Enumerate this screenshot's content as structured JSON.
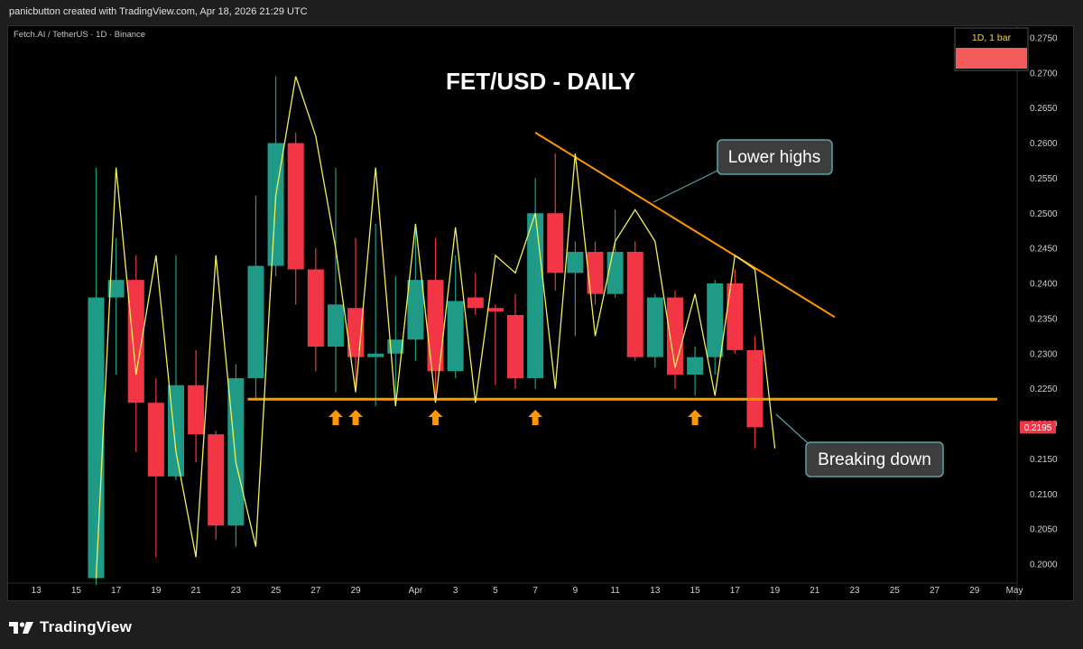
{
  "header": {
    "credit": "panicbutton created with TradingView.com, Apr 18, 2026 21:29 UTC"
  },
  "symbol_line": "Fetch.AI / TetherUS · 1D · Binance",
  "brand": {
    "name": "TradingView"
  },
  "colors": {
    "up": "#1e9a87",
    "down": "#f23645",
    "zigzag": "#f3ee5c",
    "trend": "#ff9800",
    "callout_bg": "#3d3d3d",
    "callout_border": "#5aa3a8"
  },
  "chart_data": {
    "type": "candlestick",
    "title": "FET/USD  -  DAILY",
    "x_labels": [
      "13",
      "15",
      "17",
      "19",
      "21",
      "23",
      "25",
      "27",
      "29",
      "Apr",
      "3",
      "5",
      "7",
      "9",
      "11",
      "13",
      "15",
      "17",
      "19",
      "21",
      "23",
      "25",
      "27",
      "29",
      "May"
    ],
    "y_ticks": [
      "0.2750",
      "0.2700",
      "0.2650",
      "0.2600",
      "0.2550",
      "0.2500",
      "0.2450",
      "0.2400",
      "0.2350",
      "0.2300",
      "0.2250",
      "0.2200",
      "0.2150",
      "0.2100",
      "0.2050",
      "0.2000"
    ],
    "ylim": [
      0.1975,
      0.2775
    ],
    "candles": [
      {
        "date": "Mar 16",
        "open": 0.198,
        "high": 0.2565,
        "low": 0.197,
        "close": 0.238
      },
      {
        "date": "Mar 17",
        "open": 0.238,
        "high": 0.2465,
        "low": 0.227,
        "close": 0.2405
      },
      {
        "date": "Mar 18",
        "open": 0.2405,
        "high": 0.244,
        "low": 0.216,
        "close": 0.223
      },
      {
        "date": "Mar 19",
        "open": 0.223,
        "high": 0.2265,
        "low": 0.201,
        "close": 0.2125
      },
      {
        "date": "Mar 20",
        "open": 0.2125,
        "high": 0.244,
        "low": 0.212,
        "close": 0.2255
      },
      {
        "date": "Mar 21",
        "open": 0.2255,
        "high": 0.2305,
        "low": 0.2145,
        "close": 0.2185
      },
      {
        "date": "Mar 22",
        "open": 0.2185,
        "high": 0.219,
        "low": 0.2035,
        "close": 0.2055
      },
      {
        "date": "Mar 23",
        "open": 0.2055,
        "high": 0.2285,
        "low": 0.2025,
        "close": 0.2265
      },
      {
        "date": "Mar 24",
        "open": 0.2265,
        "high": 0.2525,
        "low": 0.2235,
        "close": 0.2425
      },
      {
        "date": "Mar 25",
        "open": 0.2425,
        "high": 0.2695,
        "low": 0.241,
        "close": 0.26
      },
      {
        "date": "Mar 26",
        "open": 0.26,
        "high": 0.2615,
        "low": 0.237,
        "close": 0.242
      },
      {
        "date": "Mar 27",
        "open": 0.242,
        "high": 0.245,
        "low": 0.2275,
        "close": 0.231
      },
      {
        "date": "Mar 28",
        "open": 0.231,
        "high": 0.2565,
        "low": 0.2245,
        "close": 0.237
      },
      {
        "date": "Mar 29",
        "open": 0.2365,
        "high": 0.2465,
        "low": 0.225,
        "close": 0.2295
      },
      {
        "date": "Mar 30",
        "open": 0.2295,
        "high": 0.2485,
        "low": 0.2225,
        "close": 0.23
      },
      {
        "date": "Mar 31",
        "open": 0.23,
        "high": 0.241,
        "low": 0.223,
        "close": 0.232
      },
      {
        "date": "Apr 1",
        "open": 0.232,
        "high": 0.248,
        "low": 0.229,
        "close": 0.2405
      },
      {
        "date": "Apr 2",
        "open": 0.2405,
        "high": 0.2465,
        "low": 0.223,
        "close": 0.2275
      },
      {
        "date": "Apr 3",
        "open": 0.2275,
        "high": 0.244,
        "low": 0.2265,
        "close": 0.2375
      },
      {
        "date": "Apr 4",
        "open": 0.238,
        "high": 0.2415,
        "low": 0.2355,
        "close": 0.2365
      },
      {
        "date": "Apr 5",
        "open": 0.2365,
        "high": 0.237,
        "low": 0.2255,
        "close": 0.236
      },
      {
        "date": "Apr 6",
        "open": 0.2355,
        "high": 0.2385,
        "low": 0.225,
        "close": 0.2265
      },
      {
        "date": "Apr 7",
        "open": 0.2265,
        "high": 0.255,
        "low": 0.225,
        "close": 0.25
      },
      {
        "date": "Apr 8",
        "open": 0.25,
        "high": 0.2585,
        "low": 0.239,
        "close": 0.2415
      },
      {
        "date": "Apr 9",
        "open": 0.2415,
        "high": 0.246,
        "low": 0.2325,
        "close": 0.2445
      },
      {
        "date": "Apr 10",
        "open": 0.2445,
        "high": 0.246,
        "low": 0.237,
        "close": 0.2385
      },
      {
        "date": "Apr 11",
        "open": 0.2385,
        "high": 0.2505,
        "low": 0.238,
        "close": 0.2445
      },
      {
        "date": "Apr 12",
        "open": 0.2445,
        "high": 0.246,
        "low": 0.229,
        "close": 0.2295
      },
      {
        "date": "Apr 13",
        "open": 0.2295,
        "high": 0.2385,
        "low": 0.228,
        "close": 0.238
      },
      {
        "date": "Apr 14",
        "open": 0.238,
        "high": 0.239,
        "low": 0.225,
        "close": 0.227
      },
      {
        "date": "Apr 15",
        "open": 0.227,
        "high": 0.231,
        "low": 0.224,
        "close": 0.2295
      },
      {
        "date": "Apr 16",
        "open": 0.2295,
        "high": 0.2405,
        "low": 0.227,
        "close": 0.24
      },
      {
        "date": "Apr 17",
        "open": 0.24,
        "high": 0.242,
        "low": 0.23,
        "close": 0.2305
      },
      {
        "date": "Apr 18",
        "open": 0.2305,
        "high": 0.2325,
        "low": 0.2165,
        "close": 0.2195
      }
    ],
    "zigzag_values": [
      0.198,
      0.2565,
      0.227,
      0.244,
      0.216,
      0.201,
      0.244,
      0.2145,
      0.2025,
      0.2525,
      0.2695,
      0.261,
      0.245,
      0.2245,
      0.2565,
      0.2225,
      0.2485,
      0.223,
      0.248,
      0.223,
      0.244,
      0.2415,
      0.25,
      0.225,
      0.2585,
      0.2325,
      0.246,
      0.2505,
      0.246,
      0.228,
      0.2385,
      0.224,
      0.244,
      0.242,
      0.2165
    ],
    "support_level": 0.2235,
    "trendline": [
      {
        "date": "Apr 7",
        "value": 0.2615
      },
      {
        "date": "Apr 22",
        "value": 0.2352
      }
    ],
    "current_price": "0.2195",
    "interval_box": "1D, 1 bar",
    "annotations": {
      "lower_highs": "Lower highs",
      "breaking_down": "Breaking down"
    },
    "arrow_dates": [
      "Mar 28",
      "Mar 29",
      "Apr 2",
      "Apr 7",
      "Apr 15"
    ]
  }
}
